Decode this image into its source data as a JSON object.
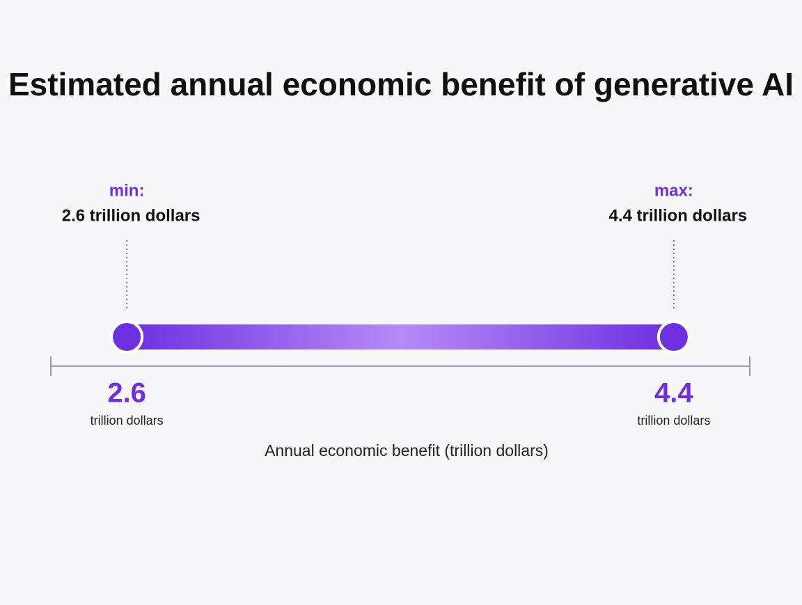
{
  "chart_data": {
    "type": "range",
    "title": "Estimated annual economic benefit of generative AI",
    "range_labels": [
      "min:",
      "max:"
    ],
    "values": [
      2.6,
      4.4
    ],
    "value_labels": [
      "2.6 trillion dollars",
      "4.4 trillion dollars"
    ],
    "unit": "trillion dollars",
    "xlabel": "Annual economic benefit (trillion dollars)",
    "xlim": [
      2.35,
      4.65
    ],
    "color": "#6d2fe0"
  }
}
